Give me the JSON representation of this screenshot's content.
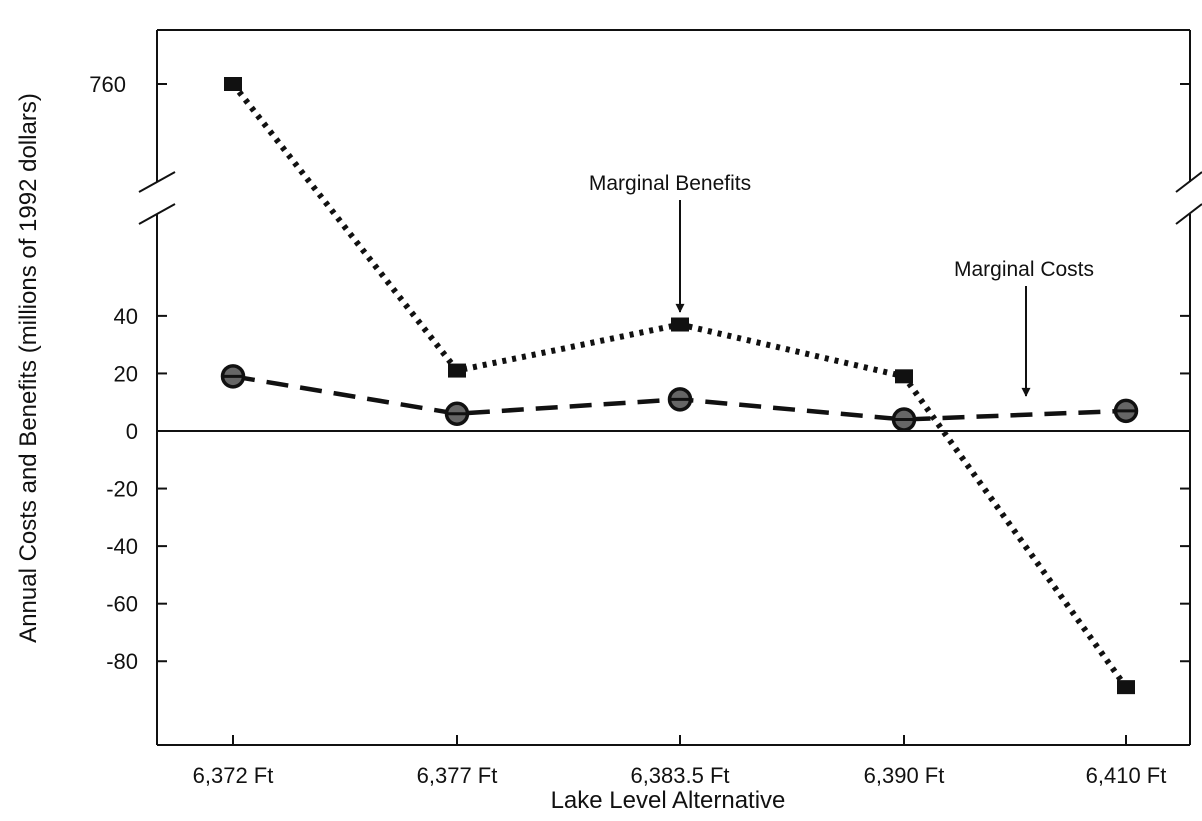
{
  "chart_data": {
    "type": "line",
    "title": "",
    "xlabel": "Lake Level Alternative",
    "ylabel": "Annual Costs and Benefits (millions of 1992 dollars)",
    "categories": [
      "6,372 Ft",
      "6,377 Ft",
      "6,383.5 Ft",
      "6,390 Ft",
      "6,410 Ft"
    ],
    "yticks_lower": [
      "40",
      "20",
      "0",
      "-20",
      "-40",
      "-60",
      "-80"
    ],
    "ytick_upper": "760",
    "ylim_lower": [
      -100,
      60
    ],
    "axis_break": true,
    "grid": false,
    "series": [
      {
        "name": "Marginal Benefits",
        "marker": "square",
        "line_style": "dotted",
        "values": [
          760,
          21,
          37,
          19,
          -89
        ]
      },
      {
        "name": "Marginal Costs",
        "marker": "circle",
        "line_style": "dashed",
        "values": [
          19,
          6,
          11,
          4,
          7
        ]
      }
    ],
    "annotations": [
      {
        "text": "Marginal Benefits",
        "series": "Marginal Benefits",
        "category": "6,383.5 Ft"
      },
      {
        "text": "Marginal Costs",
        "series": "Marginal Costs",
        "category_between": [
          "6,390 Ft",
          "6,410 Ft"
        ]
      }
    ],
    "colors": {
      "ink": "#111111",
      "background": "#ffffff"
    }
  }
}
